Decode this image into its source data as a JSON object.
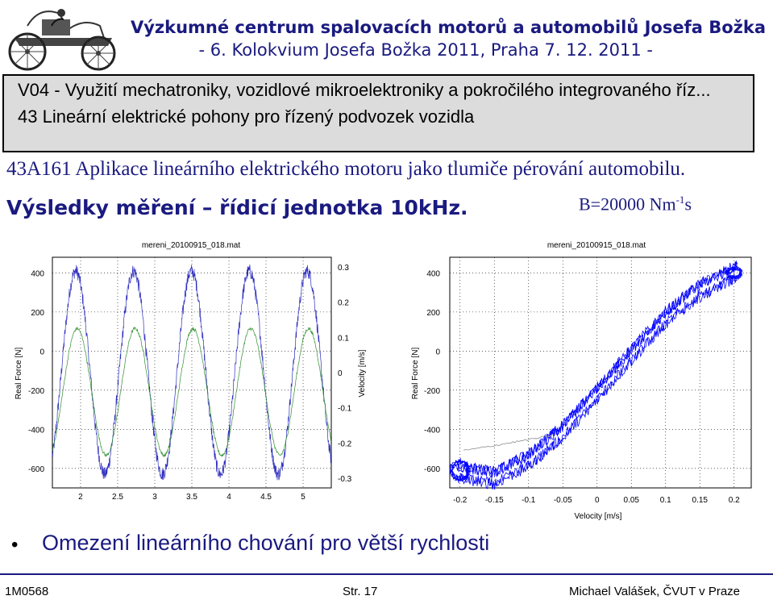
{
  "header": {
    "title_line1": "Výzkumné centrum spalovacích motorů a automobilů Josefa Božka",
    "title_line2": "- 6. Kolokvium Josefa Božka 2011, Praha 7. 12. 2011 -"
  },
  "box": {
    "line1": "V04 - Využití mechatroniky, vozidlové mikroelektroniky a pokročilého integrovaného říz...",
    "line2": "43 Lineární elektrické pohony pro řízený podvozek vozidla"
  },
  "subtitle": "43A161 Aplikace lineárního elektrického motoru jako tlumiče pérování automobilu.",
  "results_heading": "Výsledky měření – řídicí jednotka 10kHz.",
  "b_value": {
    "base": "B=20000 Nm",
    "sup": "-1",
    "unit": "s"
  },
  "chart_data": [
    {
      "type": "line",
      "title": "mereni_20100915_018.mat",
      "ylabel": "Real Force [N]",
      "y2label": "Velocity [m/s]",
      "xlim": [
        1.62,
        5.38
      ],
      "ylim": [
        -700,
        480
      ],
      "y2lim": [
        -0.3,
        0.3
      ],
      "x_ticks": [
        "2",
        "2.5",
        "3",
        "3.5",
        "4",
        "4.5",
        "5"
      ],
      "y_ticks": [
        "400",
        "200",
        "0",
        "-200",
        "-400",
        "-600"
      ],
      "y2_ticks": [
        "0.3",
        "0.2",
        "0.1",
        "0",
        "-0.1",
        "-0.2",
        "-0.3"
      ],
      "series": [
        {
          "color": "#3030c0",
          "period": 0.78,
          "phase_x": 1.74,
          "amplitude": 520,
          "offset": -110
        },
        {
          "color": "#309030",
          "period": 0.78,
          "phase_x": 1.76,
          "amplitude": 0.18,
          "offset": -0.055
        }
      ]
    },
    {
      "type": "scatter",
      "title": "mereni_20100915_018.mat",
      "xlabel": "Velocity [m/s]",
      "ylabel": "Real Force [N]",
      "xlim": [
        -0.215,
        0.225
      ],
      "ylim": [
        -700,
        480
      ],
      "x_ticks": [
        "-0.2",
        "-0.15",
        "-0.1",
        "-0.05",
        "0",
        "0.05",
        "0.1",
        "0.15",
        "0.2"
      ],
      "y_ticks": [
        "400",
        "200",
        "0",
        "-200",
        "-400",
        "-600"
      ],
      "series": [
        {
          "color": "#0000ff",
          "points": [
            [
              -0.2,
              -620
            ],
            [
              -0.15,
              -650
            ],
            [
              -0.1,
              -560
            ],
            [
              -0.05,
              -410
            ],
            [
              0,
              -220
            ],
            [
              0.05,
              -20
            ],
            [
              0.1,
              170
            ],
            [
              0.15,
              310
            ],
            [
              0.2,
              400
            ]
          ]
        }
      ]
    }
  ],
  "bullet": "Omezení lineárního chování pro větší rychlosti",
  "footer": {
    "left": "1M0568",
    "center": "Str. 17",
    "right": "Michael Valášek, ČVUT v Praze"
  }
}
